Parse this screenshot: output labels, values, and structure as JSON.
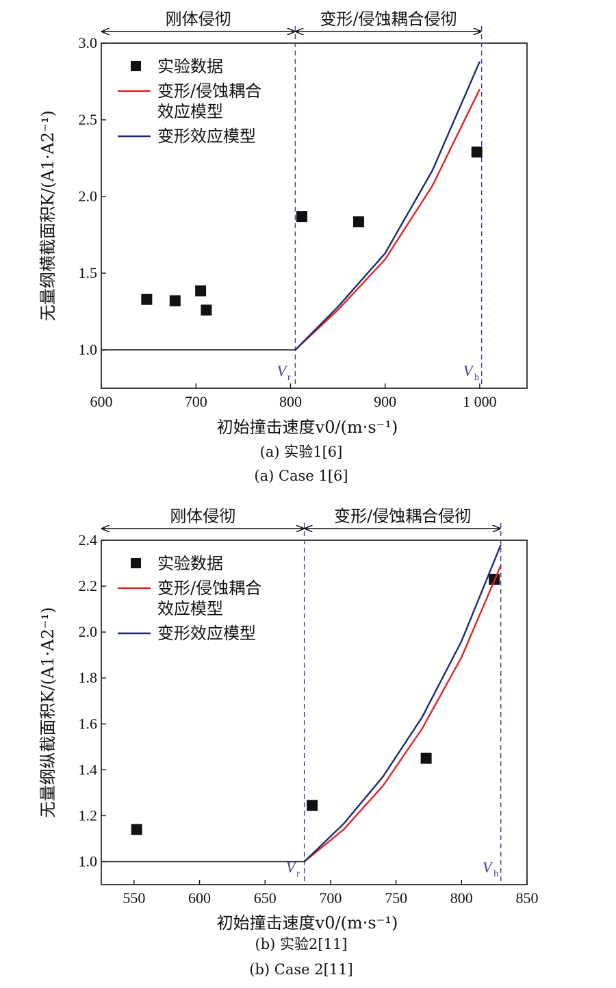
{
  "chart_data": [
    {
      "type": "scatter",
      "region_labels": [
        "刚体侵彻",
        "变形/侵蚀耦合侵彻"
      ],
      "xlabel": "初始撞击速度v0/(m·s⁻¹)",
      "ylabel": "无量纲横截面积K/(A1·A2⁻¹)",
      "xlim": [
        600,
        1050
      ],
      "ylim": [
        0.75,
        3.0
      ],
      "xticks": [
        600,
        700,
        800,
        900,
        1000
      ],
      "xtick_labels": [
        "600",
        "700",
        "800",
        "900",
        "1 000"
      ],
      "yticks": [
        1.0,
        1.5,
        2.0,
        2.5,
        3.0
      ],
      "ytick_labels": [
        "1.0",
        "1.5",
        "2.0",
        "2.5",
        "3.0"
      ],
      "vr": 805,
      "vh": 1002,
      "vr_label": "V",
      "vr_sub": "r",
      "vh_label": "V",
      "vh_sub": "h",
      "legend": [
        "实验数据",
        "变形/侵蚀耦合",
        "效应模型",
        "变形效应模型"
      ],
      "legend_position": "top-left",
      "series": [
        {
          "name": "实验数据",
          "kind": "scatter",
          "x": [
            648,
            678,
            705,
            711,
            812,
            872,
            997
          ],
          "y": [
            1.33,
            1.32,
            1.385,
            1.26,
            1.87,
            1.835,
            2.29
          ]
        },
        {
          "name": "变形/侵蚀耦合效应模型",
          "kind": "line",
          "color": "#e32222",
          "x": [
            805,
            850,
            900,
            950,
            1000
          ],
          "y": [
            1.0,
            1.26,
            1.59,
            2.07,
            2.7
          ]
        },
        {
          "name": "变形效应模型",
          "kind": "line",
          "color": "#1f2a6e",
          "x": [
            805,
            850,
            900,
            950,
            1000
          ],
          "y": [
            1.0,
            1.28,
            1.63,
            2.17,
            2.88
          ]
        },
        {
          "name": "baseline",
          "kind": "line",
          "color": "#111111",
          "x": [
            600,
            805
          ],
          "y": [
            1.0,
            1.0
          ]
        }
      ],
      "caption_lines": [
        "(a) 实验1[6]",
        "(a) Case 1[6]"
      ]
    },
    {
      "type": "scatter",
      "region_labels": [
        "刚体侵彻",
        "变形/侵蚀耦合侵彻"
      ],
      "xlabel": "初始撞击速度v0/(m·s⁻¹)",
      "ylabel": "无量纲纵截面积K/(A1·A2⁻¹)",
      "xlim": [
        525,
        850
      ],
      "ylim": [
        0.9,
        2.4
      ],
      "xticks": [
        550,
        600,
        650,
        700,
        750,
        800,
        850
      ],
      "xtick_labels": [
        "550",
        "600",
        "650",
        "700",
        "750",
        "800",
        "850"
      ],
      "yticks": [
        1.0,
        1.2,
        1.4,
        1.6,
        1.8,
        2.0,
        2.2,
        2.4
      ],
      "ytick_labels": [
        "1.0",
        "1.2",
        "1.4",
        "1.6",
        "1.8",
        "2.0",
        "2.2",
        "2.4"
      ],
      "vr": 680,
      "vh": 830,
      "vr_label": "V",
      "vr_sub": "r",
      "vh_label": "V",
      "vh_sub": "h",
      "legend": [
        "实验数据",
        "变形/侵蚀耦合",
        "效应模型",
        "变形效应模型"
      ],
      "legend_position": "top-left",
      "series": [
        {
          "name": "实验数据",
          "kind": "scatter",
          "x": [
            552,
            686,
            773,
            825
          ],
          "y": [
            1.14,
            1.245,
            1.45,
            2.23
          ]
        },
        {
          "name": "变形/侵蚀耦合效应模型",
          "kind": "line",
          "color": "#e32222",
          "x": [
            680,
            710,
            740,
            770,
            800,
            830
          ],
          "y": [
            1.0,
            1.14,
            1.33,
            1.58,
            1.89,
            2.29
          ]
        },
        {
          "name": "变形效应模型",
          "kind": "line",
          "color": "#1f2a6e",
          "x": [
            680,
            710,
            740,
            770,
            800,
            830
          ],
          "y": [
            1.0,
            1.165,
            1.37,
            1.63,
            1.96,
            2.38
          ]
        },
        {
          "name": "baseline",
          "kind": "line",
          "color": "#111111",
          "x": [
            525,
            680
          ],
          "y": [
            1.0,
            1.0
          ]
        }
      ],
      "caption_lines": [
        "(b) 实验2[11]",
        "(b) Case 2[11]"
      ]
    }
  ]
}
